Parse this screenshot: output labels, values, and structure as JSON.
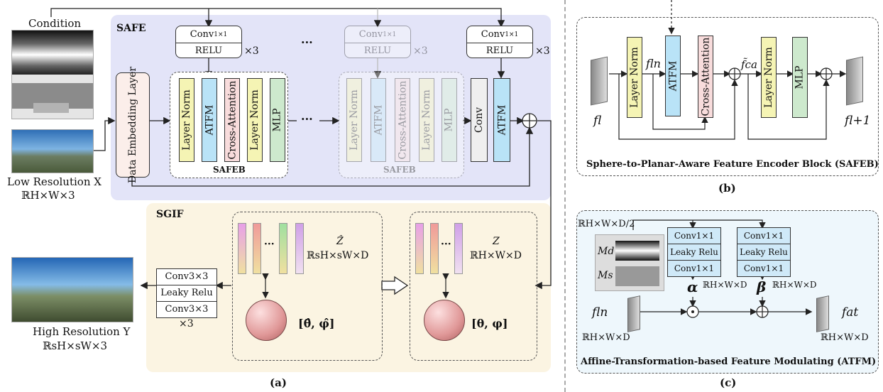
{
  "panel_a": {
    "condition_label": "Condition",
    "low_res_label": "Low Resolution X",
    "low_res_dim": "ℝH×W×3",
    "high_res_label": "High Resolution Y",
    "high_res_dim": "ℝsH×sW×3",
    "safe_title": "SAFE",
    "sgif_title": "SGIF",
    "data_embedding": "Data Embedding Layer",
    "conv_label": "Conv",
    "conv_sub": "1×1",
    "relu_label": "RELU",
    "times3": "×3",
    "ellipsis": "···",
    "safeb_blocks": [
      "Layer Norm",
      "ATFM",
      "Cross-Attention",
      "Layer Norm",
      "MLP"
    ],
    "safeb_label": "SAFEB",
    "final_conv": "Conv",
    "final_atfm": "ATFM",
    "out_table": [
      "Conv3×3",
      "Leaky Relu",
      "Conv3×3"
    ],
    "out_times": "×3",
    "z_hat": "Ẑ",
    "z_hat_dim": "ℝsH×sW×D",
    "z": "Z",
    "z_dim": "ℝH×W×D",
    "coords_hat": "[θ̂, φ̂]",
    "coords": "[θ, φ]",
    "caption": "(a)"
  },
  "panel_b": {
    "title": "Sphere-to-Planar-Aware Feature Encoder Block (SAFEB)",
    "blocks": [
      "Layer Norm",
      "ATFM",
      "Cross-Attention",
      "Layer Norm",
      "MLP"
    ],
    "f_l": "fl",
    "f_ln": "fln",
    "f_ca": "f̃ca",
    "f_l1": "fl+1",
    "caption": "(b)"
  },
  "panel_c": {
    "title": "Affine-Transformation-based Feature Modulating (ATFM)",
    "input_dim": "ℝH×W×D/2",
    "m_d": "Md",
    "m_s": "Ms",
    "branch1": [
      "Conv1×1",
      "Leaky Relu",
      "Conv1×1"
    ],
    "branch2": [
      "Conv1×1",
      "Leaky Relu",
      "Conv1×1"
    ],
    "alpha": "α",
    "alpha_dim": "ℝH×W×D",
    "beta": "β",
    "beta_dim": "ℝH×W×D",
    "f_ln": "fln",
    "f_ln_dim": "ℝH×W×D",
    "f_at": "fat",
    "f_at_dim": "ℝH×W×D",
    "caption": "(c)"
  },
  "colors": {
    "safe_bg": "#e3e4f8",
    "sgif_bg": "#fbf4e2",
    "atfm_bg": "#eef7fc",
    "layer_norm": "#f5f4b4",
    "atfm": "#b9e3f7",
    "cross_att": "#f8dcdc",
    "mlp": "#cde9cd",
    "embed": "#fbeeea",
    "conv_gray": "#efefef"
  }
}
